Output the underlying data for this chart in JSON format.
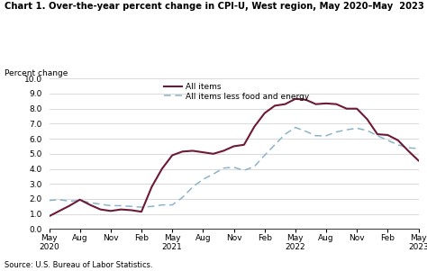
{
  "title": "Chart 1. Over-the-year percent change in CPI-U, West region, May 2020–May  2023",
  "ylabel": "Percent change",
  "source": "Source: U.S. Bureau of Labor Statistics.",
  "ylim": [
    0.0,
    10.0
  ],
  "yticks": [
    0.0,
    1.0,
    2.0,
    3.0,
    4.0,
    5.0,
    6.0,
    7.0,
    8.0,
    9.0,
    10.0
  ],
  "all_items_color": "#6d1a36",
  "core_color": "#8ab4cc",
  "all_items_label": "All items",
  "core_label": "All items less food and energy",
  "all_items_values": [
    0.85,
    1.2,
    1.55,
    1.95,
    1.6,
    1.3,
    1.2,
    1.3,
    1.25,
    1.15,
    2.8,
    4.0,
    4.9,
    5.15,
    5.2,
    5.1,
    5.0,
    5.2,
    5.5,
    5.6,
    6.8,
    7.7,
    8.2,
    8.3,
    8.65,
    8.6,
    8.3,
    8.35,
    8.3,
    8.0,
    8.0,
    7.3,
    6.3,
    6.25,
    5.9,
    5.2,
    4.55
  ],
  "core_values": [
    1.9,
    1.95,
    1.85,
    1.9,
    1.75,
    1.65,
    1.55,
    1.55,
    1.5,
    1.45,
    1.5,
    1.6,
    1.6,
    2.1,
    2.8,
    3.3,
    3.65,
    4.05,
    4.1,
    3.9,
    4.15,
    4.9,
    5.6,
    6.3,
    6.75,
    6.5,
    6.2,
    6.2,
    6.45,
    6.6,
    6.7,
    6.55,
    6.2,
    5.9,
    5.6,
    5.4,
    5.35
  ],
  "xtick_labels": [
    "May\n2020",
    "Aug",
    "Nov",
    "Feb",
    "May\n2021",
    "Aug",
    "Nov",
    "Feb",
    "May\n2022",
    "Aug",
    "Nov",
    "Feb",
    "May\n2023"
  ],
  "xtick_positions": [
    0,
    3,
    6,
    9,
    12,
    15,
    18,
    21,
    24,
    27,
    30,
    33,
    36
  ],
  "title_fontsize": 7.2,
  "label_fontsize": 6.5,
  "source_fontsize": 6.0,
  "legend_fontsize": 6.5
}
